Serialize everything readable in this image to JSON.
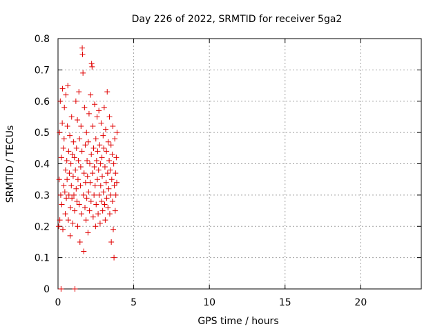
{
  "chart_data": {
    "type": "scatter",
    "title": "Day 226 of 2022, SRMTID for receiver 5ga2",
    "xlabel": "GPS time / hours",
    "ylabel": "SRMTID / TECUs",
    "xlim": [
      0,
      24
    ],
    "ylim": [
      0,
      0.8
    ],
    "xticks": [
      0,
      5,
      10,
      15,
      20
    ],
    "xtick_labels": [
      "0",
      "5",
      "10",
      "15",
      "20"
    ],
    "yticks": [
      0,
      0.1,
      0.2,
      0.3,
      0.4,
      0.5,
      0.6,
      0.7,
      0.8
    ],
    "ytick_labels": [
      "0",
      "0.1",
      "0.2",
      "0.3",
      "0.4",
      "0.5",
      "0.6",
      "0.7",
      "0.8"
    ],
    "grid": true,
    "marker": "+",
    "color": "#e00000",
    "series": [
      {
        "name": "SRMTID",
        "points": [
          [
            0.05,
            0.2
          ],
          [
            0.08,
            0.35
          ],
          [
            0.1,
            0.5
          ],
          [
            0.12,
            0.22
          ],
          [
            0.15,
            0.6
          ],
          [
            0.18,
            0.3
          ],
          [
            0.2,
            0.0
          ],
          [
            0.22,
            0.42
          ],
          [
            0.25,
            0.27
          ],
          [
            0.28,
            0.53
          ],
          [
            0.3,
            0.64
          ],
          [
            0.32,
            0.19
          ],
          [
            0.35,
            0.45
          ],
          [
            0.38,
            0.33
          ],
          [
            0.4,
            0.48
          ],
          [
            0.42,
            0.58
          ],
          [
            0.45,
            0.31
          ],
          [
            0.48,
            0.24
          ],
          [
            0.5,
            0.38
          ],
          [
            0.52,
            0.62
          ],
          [
            0.55,
            0.29
          ],
          [
            0.58,
            0.41
          ],
          [
            0.6,
            0.35
          ],
          [
            0.62,
            0.52
          ],
          [
            0.65,
            0.65
          ],
          [
            0.68,
            0.22
          ],
          [
            0.7,
            0.44
          ],
          [
            0.72,
            0.3
          ],
          [
            0.75,
            0.37
          ],
          [
            0.78,
            0.49
          ],
          [
            0.8,
            0.17
          ],
          [
            0.82,
            0.26
          ],
          [
            0.85,
            0.4
          ],
          [
            0.88,
            0.33
          ],
          [
            0.9,
            0.55
          ],
          [
            0.92,
            0.29
          ],
          [
            0.95,
            0.43
          ],
          [
            0.98,
            0.21
          ],
          [
            1.0,
            0.36
          ],
          [
            1.02,
            0.47
          ],
          [
            1.05,
            0.3
          ],
          [
            1.08,
            0.42
          ],
          [
            1.1,
            0.25
          ],
          [
            1.12,
            0.0
          ],
          [
            1.15,
            0.38
          ],
          [
            1.18,
            0.6
          ],
          [
            1.2,
            0.32
          ],
          [
            1.22,
            0.45
          ],
          [
            1.25,
            0.28
          ],
          [
            1.28,
            0.54
          ],
          [
            1.3,
            0.2
          ],
          [
            1.32,
            0.35
          ],
          [
            1.35,
            0.41
          ],
          [
            1.38,
            0.63
          ],
          [
            1.4,
            0.27
          ],
          [
            1.42,
            0.48
          ],
          [
            1.45,
            0.15
          ],
          [
            1.48,
            0.33
          ],
          [
            1.5,
            0.39
          ],
          [
            1.52,
            0.52
          ],
          [
            1.55,
            0.24
          ],
          [
            1.58,
            0.44
          ],
          [
            1.6,
            0.77
          ],
          [
            1.62,
            0.75
          ],
          [
            1.65,
            0.69
          ],
          [
            1.68,
            0.3
          ],
          [
            1.7,
            0.12
          ],
          [
            1.72,
            0.37
          ],
          [
            1.75,
            0.58
          ],
          [
            1.78,
            0.26
          ],
          [
            1.8,
            0.46
          ],
          [
            1.82,
            0.34
          ],
          [
            1.85,
            0.22
          ],
          [
            1.88,
            0.5
          ],
          [
            1.9,
            0.29
          ],
          [
            1.92,
            0.41
          ],
          [
            1.95,
            0.36
          ],
          [
            1.98,
            0.18
          ],
          [
            2.0,
            0.47
          ],
          [
            2.02,
            0.31
          ],
          [
            2.05,
            0.56
          ],
          [
            2.08,
            0.25
          ],
          [
            2.1,
            0.4
          ],
          [
            2.12,
            0.34
          ],
          [
            2.15,
            0.62
          ],
          [
            2.18,
            0.28
          ],
          [
            2.2,
            0.43
          ],
          [
            2.22,
            0.72
          ],
          [
            2.25,
            0.71
          ],
          [
            2.28,
            0.37
          ],
          [
            2.3,
            0.52
          ],
          [
            2.32,
            0.23
          ],
          [
            2.35,
            0.45
          ],
          [
            2.38,
            0.3
          ],
          [
            2.4,
            0.39
          ],
          [
            2.42,
            0.59
          ],
          [
            2.45,
            0.33
          ],
          [
            2.48,
            0.2
          ],
          [
            2.5,
            0.48
          ],
          [
            2.52,
            0.27
          ],
          [
            2.55,
            0.41
          ],
          [
            2.58,
            0.55
          ],
          [
            2.6,
            0.35
          ],
          [
            2.62,
            0.44
          ],
          [
            2.65,
            0.24
          ],
          [
            2.68,
            0.38
          ],
          [
            2.7,
            0.57
          ],
          [
            2.72,
            0.3
          ],
          [
            2.75,
            0.46
          ],
          [
            2.78,
            0.21
          ],
          [
            2.8,
            0.4
          ],
          [
            2.82,
            0.33
          ],
          [
            2.85,
            0.53
          ],
          [
            2.88,
            0.28
          ],
          [
            2.9,
            0.42
          ],
          [
            2.92,
            0.36
          ],
          [
            2.95,
            0.25
          ],
          [
            2.98,
            0.49
          ],
          [
            3.0,
            0.31
          ],
          [
            3.02,
            0.45
          ],
          [
            3.05,
            0.58
          ],
          [
            3.08,
            0.27
          ],
          [
            3.1,
            0.39
          ],
          [
            3.12,
            0.22
          ],
          [
            3.15,
            0.51
          ],
          [
            3.18,
            0.34
          ],
          [
            3.2,
            0.44
          ],
          [
            3.22,
            0.29
          ],
          [
            3.25,
            0.63
          ],
          [
            3.28,
            0.37
          ],
          [
            3.3,
            0.26
          ],
          [
            3.32,
            0.47
          ],
          [
            3.35,
            0.32
          ],
          [
            3.38,
            0.41
          ],
          [
            3.4,
            0.55
          ],
          [
            3.42,
            0.24
          ],
          [
            3.45,
            0.38
          ],
          [
            3.48,
            0.3
          ],
          [
            3.5,
            0.46
          ],
          [
            3.52,
            0.15
          ],
          [
            3.55,
            0.35
          ],
          [
            3.58,
            0.43
          ],
          [
            3.6,
            0.28
          ],
          [
            3.62,
            0.52
          ],
          [
            3.65,
            0.19
          ],
          [
            3.68,
            0.4
          ],
          [
            3.7,
            0.1
          ],
          [
            3.72,
            0.33
          ],
          [
            3.75,
            0.48
          ],
          [
            3.78,
            0.25
          ],
          [
            3.8,
            0.37
          ],
          [
            3.82,
            0.3
          ],
          [
            3.85,
            0.42
          ],
          [
            3.88,
            0.34
          ],
          [
            3.9,
            0.5
          ]
        ]
      }
    ]
  }
}
